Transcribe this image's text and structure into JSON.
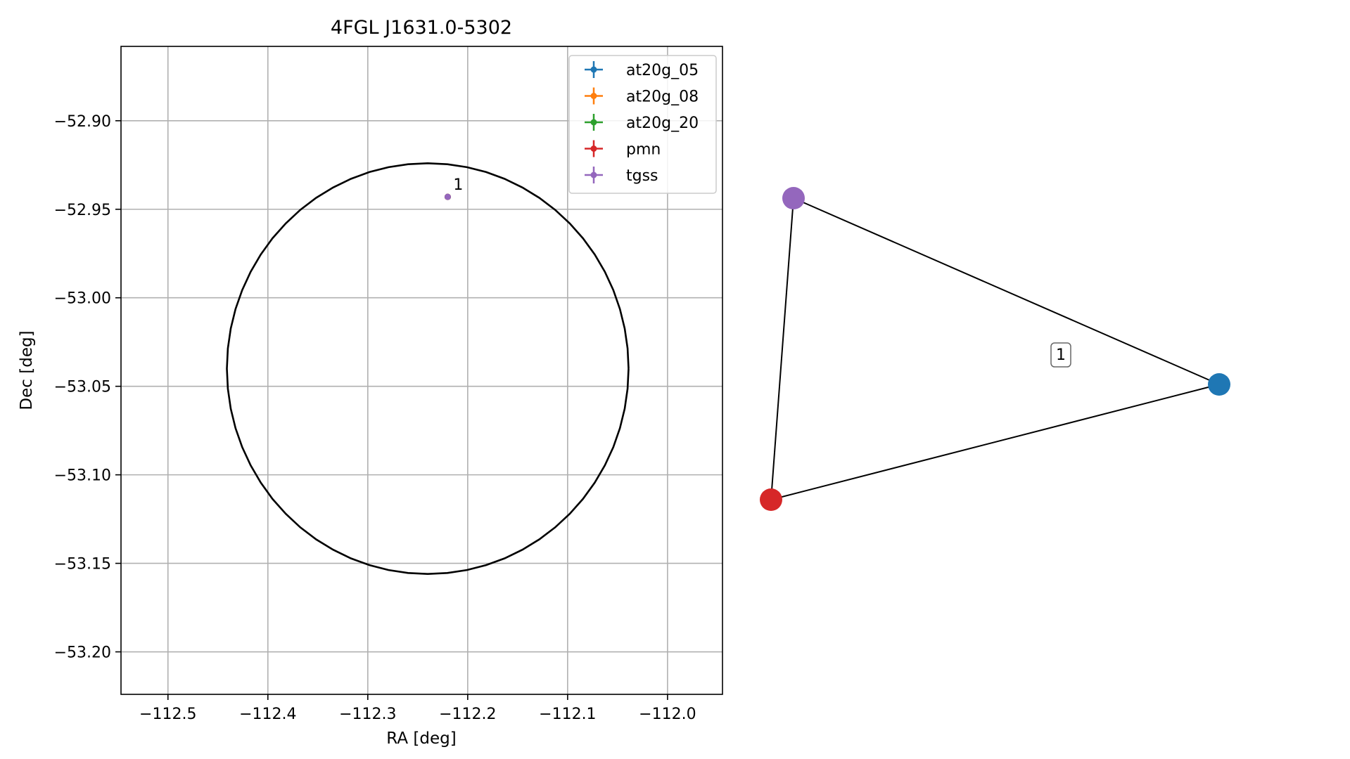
{
  "chart_data": [
    {
      "type": "scatter",
      "title": "4FGL J1631.0-5302",
      "xlabel": "RA [deg]",
      "ylabel": "Dec [deg]",
      "xlim": [
        -112.547,
        -111.945
      ],
      "ylim": [
        -53.224,
        -52.858
      ],
      "x_invert": false,
      "grid": true,
      "legend": "top-right",
      "xticks": [
        {
          "value": -112.5,
          "label": "−112.5"
        },
        {
          "value": -112.4,
          "label": "−112.4"
        },
        {
          "value": -112.3,
          "label": "−112.3"
        },
        {
          "value": -112.2,
          "label": "−112.2"
        },
        {
          "value": -112.1,
          "label": "−112.1"
        },
        {
          "value": -112.0,
          "label": "−112.0"
        }
      ],
      "yticks": [
        {
          "value": -52.9,
          "label": "−52.90"
        },
        {
          "value": -52.95,
          "label": "−52.95"
        },
        {
          "value": -53.0,
          "label": "−53.00"
        },
        {
          "value": -53.05,
          "label": "−53.05"
        },
        {
          "value": -53.1,
          "label": "−53.10"
        },
        {
          "value": -53.15,
          "label": "−53.15"
        },
        {
          "value": -53.2,
          "label": "−53.20"
        }
      ],
      "ellipse": {
        "center": [
          -112.24,
          -53.04
        ],
        "rx": 0.201,
        "ry": 0.116,
        "color": "#000000"
      },
      "series": [
        {
          "name": "at20g_05",
          "color": "#1f77b4",
          "points": [
            {
              "x": -112.22,
              "y": -52.943
            }
          ]
        },
        {
          "name": "at20g_08",
          "color": "#ff7f0e",
          "points": [
            {
              "x": -112.22,
              "y": -52.943
            }
          ]
        },
        {
          "name": "at20g_20",
          "color": "#2ca02c",
          "points": [
            {
              "x": -112.22,
              "y": -52.943
            }
          ]
        },
        {
          "name": "pmn",
          "color": "#d62728",
          "points": [
            {
              "x": -112.22,
              "y": -52.943
            }
          ]
        },
        {
          "name": "tgss",
          "color": "#9467bd",
          "points": [
            {
              "x": -112.22,
              "y": -52.943
            }
          ]
        }
      ],
      "annotations": [
        {
          "text": "1",
          "x": -112.22,
          "y": -52.943
        }
      ]
    },
    {
      "type": "network",
      "nodes": [
        {
          "id": "tgss",
          "color": "#9467bd"
        },
        {
          "id": "at20g",
          "color": "#1f77b4"
        },
        {
          "id": "pmn",
          "color": "#d62728"
        }
      ],
      "edges": [
        [
          "tgss",
          "at20g"
        ],
        [
          "at20g",
          "pmn"
        ],
        [
          "pmn",
          "tgss"
        ]
      ],
      "label": "1"
    }
  ]
}
